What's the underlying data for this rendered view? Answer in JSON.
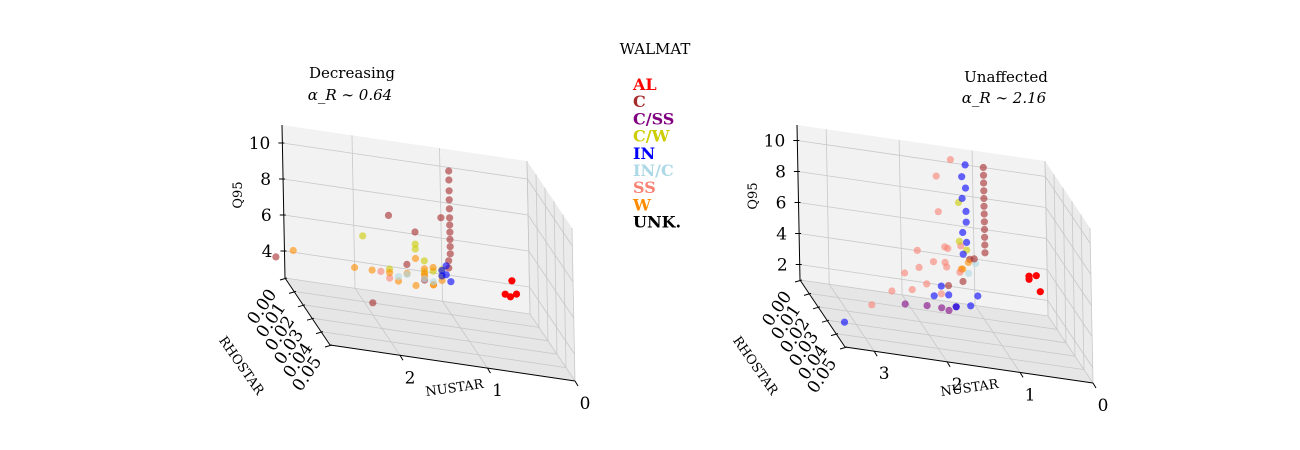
{
  "suptitle": "WALMAT",
  "legend": [
    {
      "label": "AL",
      "color": "#ff0000"
    },
    {
      "label": "C",
      "color": "#a52a2a"
    },
    {
      "label": "C/SS",
      "color": "#800080"
    },
    {
      "label": "C/W",
      "color": "#cccc00"
    },
    {
      "label": "IN",
      "color": "#0000ff"
    },
    {
      "label": "IN/C",
      "color": "#add8e6"
    },
    {
      "label": "SS",
      "color": "#fa8072"
    },
    {
      "label": "W",
      "color": "#ff8c00"
    },
    {
      "label": "UNK.",
      "color": "#000000"
    }
  ],
  "chart_data": [
    {
      "type": "scatter3d",
      "title": "Decreasing",
      "subtitle": "α_R ∼ 0.64",
      "xlabel": "NUSTAR",
      "ylabel": "RHOSTAR",
      "zlabel": "Q95",
      "xticks": [
        "2",
        "1",
        "0"
      ],
      "yticks": [
        "0.00",
        "0.01",
        "0.02",
        "0.03",
        "0.04",
        "0.05"
      ],
      "zticks": [
        "4",
        "6",
        "8",
        "10"
      ],
      "xlim": [
        0,
        2.8
      ],
      "ylim": [
        0,
        0.05
      ],
      "zlim": [
        2.5,
        11
      ],
      "grid": true,
      "series": [
        {
          "name": "AL",
          "color": "#ff0000",
          "points": [
            [
              0.2,
              0.0,
              4.2
            ],
            [
              0.15,
              0.0,
              3.5
            ],
            [
              0.22,
              0.0,
              3.3
            ],
            [
              0.28,
              0.0,
              3.4
            ]
          ]
        },
        {
          "name": "C",
          "color": "#a52a2a",
          "points": [
            [
              0.9,
              0.0,
              9.8
            ],
            [
              0.9,
              0.0,
              9.3
            ],
            [
              0.9,
              0.0,
              8.7
            ],
            [
              0.9,
              0.0,
              8.2
            ],
            [
              0.9,
              0.0,
              7.7
            ],
            [
              0.9,
              0.0,
              7.2
            ],
            [
              0.9,
              0.0,
              6.8
            ],
            [
              0.9,
              0.0,
              6.4
            ],
            [
              0.9,
              0.0,
              6.0
            ],
            [
              0.9,
              0.0,
              5.6
            ],
            [
              0.9,
              0.0,
              5.2
            ],
            [
              0.92,
              0.0,
              4.8
            ],
            [
              0.92,
              0.0,
              4.4
            ],
            [
              2.1,
              0.05,
              10.2
            ],
            [
              1.5,
              0.05,
              10.5
            ],
            [
              2.3,
              0.05,
              5.2
            ],
            [
              1.6,
              0.02,
              5.6
            ],
            [
              1.4,
              0.01,
              6.8
            ],
            [
              1.3,
              0.01,
              4.2
            ],
            [
              2.9,
              0.0,
              3.6
            ]
          ]
        },
        {
          "name": "C/W",
          "color": "#cccc00",
          "points": [
            [
              2.2,
              0.03,
              7.5
            ],
            [
              1.6,
              0.03,
              7.2
            ],
            [
              1.5,
              0.02,
              6.8
            ],
            [
              1.2,
              0.0,
              4.6
            ],
            [
              1.1,
              0.0,
              4.1
            ],
            [
              1.2,
              0.02,
              5.6
            ],
            [
              1.0,
              0.0,
              3.9
            ],
            [
              1.5,
              0.03,
              6.0
            ],
            [
              1.8,
              0.02,
              5.2
            ]
          ]
        },
        {
          "name": "IN",
          "color": "#0000ff",
          "points": [
            [
              0.95,
              0.0,
              4.5
            ],
            [
              0.95,
              0.0,
              4.0
            ],
            [
              1.0,
              0.0,
              4.2
            ],
            [
              1.1,
              0.02,
              5.0
            ],
            [
              1.0,
              0.0,
              3.9
            ]
          ]
        },
        {
          "name": "IN/C",
          "color": "#add8e6",
          "points": [
            [
              1.2,
              0.0,
              3.6
            ],
            [
              1.1,
              0.0,
              3.5
            ],
            [
              1.5,
              0.0,
              3.5
            ],
            [
              1.4,
              0.0,
              3.7
            ]
          ]
        },
        {
          "name": "SS",
          "color": "#fa8072",
          "points": [
            [
              1.8,
              0.02,
              4.7
            ],
            [
              1.9,
              0.02,
              5.0
            ]
          ]
        },
        {
          "name": "W",
          "color": "#ff8c00",
          "points": [
            [
              2.7,
              0.0,
              4.1
            ],
            [
              2.2,
              0.02,
              5.0
            ],
            [
              2.0,
              0.02,
              5.0
            ],
            [
              1.8,
              0.02,
              5.0
            ],
            [
              1.6,
              0.02,
              5.1
            ],
            [
              1.4,
              0.02,
              5.2
            ],
            [
              1.7,
              0.02,
              4.6
            ],
            [
              1.5,
              0.02,
              4.5
            ],
            [
              1.3,
              0.02,
              4.7
            ],
            [
              1.2,
              0.02,
              5.0
            ],
            [
              1.1,
              0.0,
              4.3
            ],
            [
              1.3,
              0.01,
              4.4
            ],
            [
              1.5,
              0.02,
              6.0
            ],
            [
              1.4,
              0.02,
              5.5
            ],
            [
              1.2,
              0.01,
              4.0
            ]
          ]
        }
      ]
    },
    {
      "type": "scatter3d",
      "title": "Unaffected",
      "subtitle": "α_R ∼ 2.16",
      "xlabel": "NUSTAR",
      "ylabel": "RHOSTAR",
      "zlabel": "Q95",
      "xticks": [
        "3",
        "2",
        "1",
        "0"
      ],
      "yticks": [
        "0.00",
        "0.01",
        "0.02",
        "0.03",
        "0.04",
        "0.05"
      ],
      "zticks": [
        "2",
        "4",
        "6",
        "8",
        "10"
      ],
      "xlim": [
        0,
        3.4
      ],
      "ylim": [
        0,
        0.05
      ],
      "zlim": [
        1,
        11
      ],
      "grid": true,
      "series": [
        {
          "name": "AL",
          "color": "#ff0000",
          "points": [
            [
              0.15,
              0.0,
              3.5
            ],
            [
              0.25,
              0.0,
              3.2
            ],
            [
              0.1,
              0.0,
              2.5
            ],
            [
              0.25,
              0.0,
              3.4
            ]
          ]
        },
        {
          "name": "C",
          "color": "#a52a2a",
          "points": [
            [
              0.85,
              0.0,
              10.0
            ],
            [
              0.85,
              0.0,
              9.5
            ],
            [
              0.85,
              0.0,
              9.0
            ],
            [
              0.85,
              0.0,
              8.5
            ],
            [
              0.85,
              0.0,
              8.0
            ],
            [
              0.85,
              0.0,
              7.5
            ],
            [
              0.85,
              0.0,
              7.0
            ],
            [
              0.85,
              0.0,
              6.5
            ],
            [
              0.85,
              0.0,
              6.0
            ],
            [
              0.85,
              0.0,
              5.5
            ],
            [
              0.85,
              0.0,
              5.0
            ],
            [
              0.85,
              0.0,
              4.5
            ],
            [
              1.0,
              0.0,
              4.0
            ],
            [
              1.3,
              0.02,
              5.5
            ],
            [
              1.4,
              0.02,
              4.0
            ],
            [
              1.6,
              0.02,
              3.6
            ]
          ]
        },
        {
          "name": "C/SS",
          "color": "#800080",
          "points": [
            [
              1.9,
              0.02,
              2.1
            ],
            [
              1.7,
              0.02,
              2.1
            ],
            [
              1.5,
              0.02,
              2.3
            ],
            [
              2.2,
              0.02,
              2.0
            ],
            [
              1.6,
              0.02,
              2.0
            ]
          ]
        },
        {
          "name": "C/W",
          "color": "#cccc00",
          "points": [
            [
              1.2,
              0.0,
              7.5
            ],
            [
              1.2,
              0.0,
              5.0
            ],
            [
              1.1,
              0.0,
              4.5
            ]
          ]
        },
        {
          "name": "IN",
          "color": "#0000ff",
          "points": [
            [
              1.1,
              0.0,
              10.0
            ],
            [
              1.15,
              0.0,
              9.2
            ],
            [
              1.1,
              0.0,
              8.5
            ],
            [
              1.15,
              0.0,
              7.8
            ],
            [
              1.1,
              0.0,
              7.0
            ],
            [
              1.1,
              0.0,
              6.3
            ],
            [
              1.15,
              0.0,
              5.6
            ],
            [
              1.1,
              0.0,
              5.0
            ],
            [
              1.15,
              0.0,
              4.2
            ],
            [
              1.2,
              0.02,
              3.2
            ],
            [
              1.6,
              0.02,
              3.0
            ],
            [
              1.8,
              0.02,
              2.8
            ],
            [
              1.7,
              0.02,
              3.5
            ],
            [
              3.4,
              0.05,
              2.6
            ],
            [
              1.5,
              0.02,
              2.3
            ],
            [
              1.3,
              0.02,
              2.5
            ]
          ]
        },
        {
          "name": "IN/C",
          "color": "#add8e6",
          "points": [
            [
              1.1,
              0.01,
              4.5
            ],
            [
              1.2,
              0.01,
              3.8
            ]
          ]
        },
        {
          "name": "SS",
          "color": "#fa8072",
          "points": [
            [
              1.3,
              0.0,
              10.2
            ],
            [
              1.5,
              0.0,
              9.0
            ],
            [
              1.6,
              0.01,
              7.5
            ],
            [
              1.8,
              0.02,
              5.0
            ],
            [
              2.0,
              0.02,
              4.5
            ],
            [
              2.2,
              0.02,
              4.0
            ],
            [
              1.9,
              0.02,
              3.5
            ],
            [
              1.7,
              0.02,
              3.0
            ],
            [
              1.5,
              0.01,
              4.0
            ],
            [
              1.4,
              0.0,
              4.5
            ],
            [
              2.5,
              0.03,
              3.5
            ],
            [
              2.9,
              0.04,
              3.2
            ],
            [
              1.2,
              0.0,
              3.0
            ],
            [
              1.6,
              0.02,
              6.0
            ],
            [
              1.3,
              0.01,
              5.5
            ],
            [
              1.4,
              0.0,
              3.5
            ],
            [
              2.1,
              0.02,
              3.0
            ],
            [
              1.9,
              0.01,
              4.8
            ]
          ]
        },
        {
          "name": "W",
          "color": "#ff8c00",
          "points": [
            [
              1.2,
              0.01,
              4.5
            ],
            [
              1.3,
              0.01,
              4.0
            ],
            [
              1.4,
              0.02,
              4.8
            ]
          ]
        }
      ]
    }
  ]
}
